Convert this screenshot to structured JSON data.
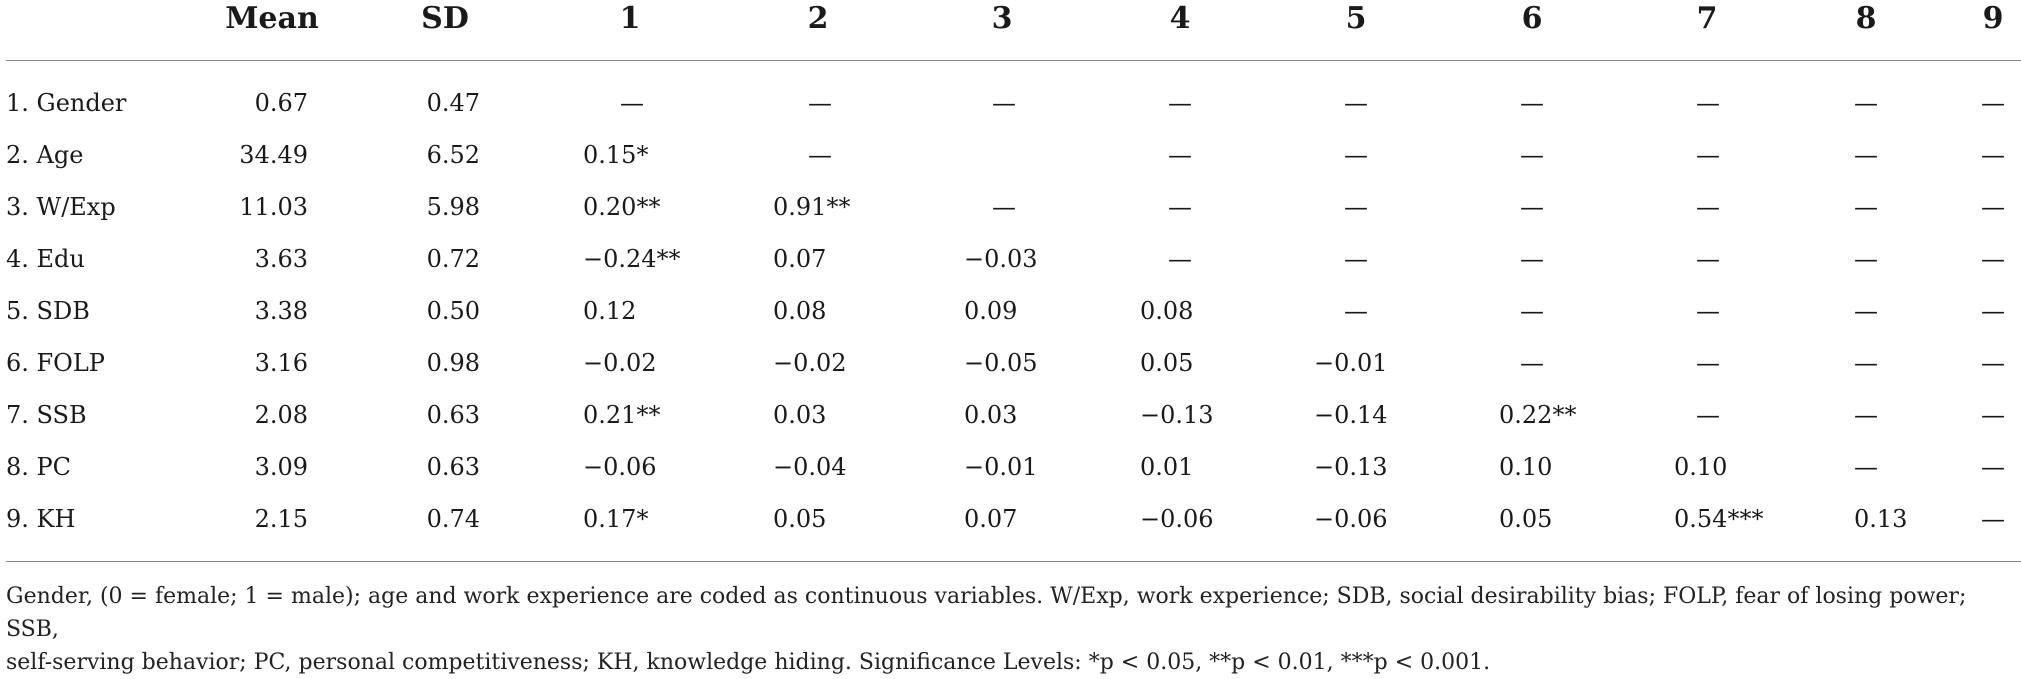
{
  "table": {
    "headers": [
      "Mean",
      "SD",
      "1",
      "2",
      "3",
      "4",
      "5",
      "6",
      "7",
      "8",
      "9"
    ],
    "rows": [
      {
        "label": "1. Gender",
        "mean": "0.67",
        "sd": "0.47",
        "cells": [
          "—",
          "—",
          "—",
          "—",
          "—",
          "—",
          "—",
          "—",
          "—"
        ]
      },
      {
        "label": "2. Age",
        "mean": "34.49",
        "sd": "6.52",
        "cells": [
          "0.15*",
          "—",
          "",
          "—",
          "—",
          "—",
          "—",
          "—",
          "—"
        ]
      },
      {
        "label": "3. W/Exp",
        "mean": "11.03",
        "sd": "5.98",
        "cells": [
          "0.20**",
          "0.91**",
          "—",
          "—",
          "—",
          "—",
          "—",
          "—",
          "—"
        ]
      },
      {
        "label": "4. Edu",
        "mean": "3.63",
        "sd": "0.72",
        "cells": [
          "−0.24**",
          "0.07",
          "−0.03",
          "—",
          "—",
          "—",
          "—",
          "—",
          "—"
        ]
      },
      {
        "label": "5. SDB",
        "mean": "3.38",
        "sd": "0.50",
        "cells": [
          "0.12",
          "0.08",
          "0.09",
          "0.08",
          "—",
          "—",
          "—",
          "—",
          "—"
        ]
      },
      {
        "label": "6. FOLP",
        "mean": "3.16",
        "sd": "0.98",
        "cells": [
          "−0.02",
          "−0.02",
          "−0.05",
          "0.05",
          "−0.01",
          "—",
          "—",
          "—",
          "—"
        ]
      },
      {
        "label": "7. SSB",
        "mean": "2.08",
        "sd": "0.63",
        "cells": [
          "0.21**",
          "0.03",
          "0.03",
          "−0.13",
          "−0.14",
          "0.22**",
          "—",
          "—",
          "—"
        ]
      },
      {
        "label": "8. PC",
        "mean": "3.09",
        "sd": "0.63",
        "cells": [
          "−0.06",
          "−0.04",
          "−0.01",
          "0.01",
          "−0.13",
          "0.10",
          "0.10",
          "—",
          "—"
        ]
      },
      {
        "label": "9. KH",
        "mean": "2.15",
        "sd": "0.74",
        "cells": [
          "0.17*",
          "0.05",
          "0.07",
          "−0.06",
          "−0.06",
          "0.05",
          "0.54***",
          "0.13",
          "—"
        ]
      }
    ]
  },
  "note": {
    "line1": "Gender, (0 = female; 1 = male); age and work experience are coded as continuous variables. W/Exp, work experience; SDB, social desirability bias; FOLP, fear of losing power; SSB,",
    "line2": "self-serving behavior; PC, personal competitiveness; KH, knowledge hiding. Significance Levels: *p < 0.05, **p < 0.01, ***p < 0.001."
  }
}
